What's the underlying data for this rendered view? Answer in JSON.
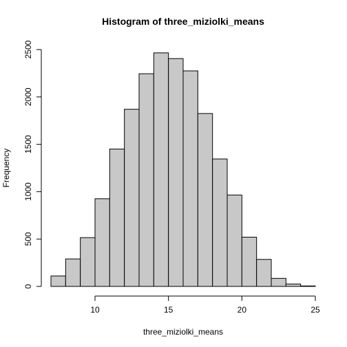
{
  "chart_data": {
    "type": "bar",
    "title": "Histogram of three_miziolki_means",
    "xlabel": "three_miziolki_means",
    "ylabel": "Frequency",
    "xlim": [
      6.8,
      25
    ],
    "ylim": [
      0,
      2500
    ],
    "x_ticks": [
      10,
      15,
      20,
      25
    ],
    "y_ticks": [
      0,
      500,
      1000,
      1500,
      2000,
      2500
    ],
    "bin_edges": [
      7,
      8,
      9,
      10,
      11,
      12,
      13,
      14,
      15,
      16,
      17,
      18,
      19,
      20,
      21,
      22,
      23,
      24,
      25
    ],
    "values": [
      110,
      290,
      515,
      925,
      1450,
      1870,
      2245,
      2465,
      2405,
      2275,
      1825,
      1345,
      965,
      520,
      285,
      85,
      25,
      5
    ],
    "grid": false,
    "legend": false,
    "colors": {
      "bar_fill": "#c8c8c8",
      "bar_stroke": "#000000"
    }
  }
}
